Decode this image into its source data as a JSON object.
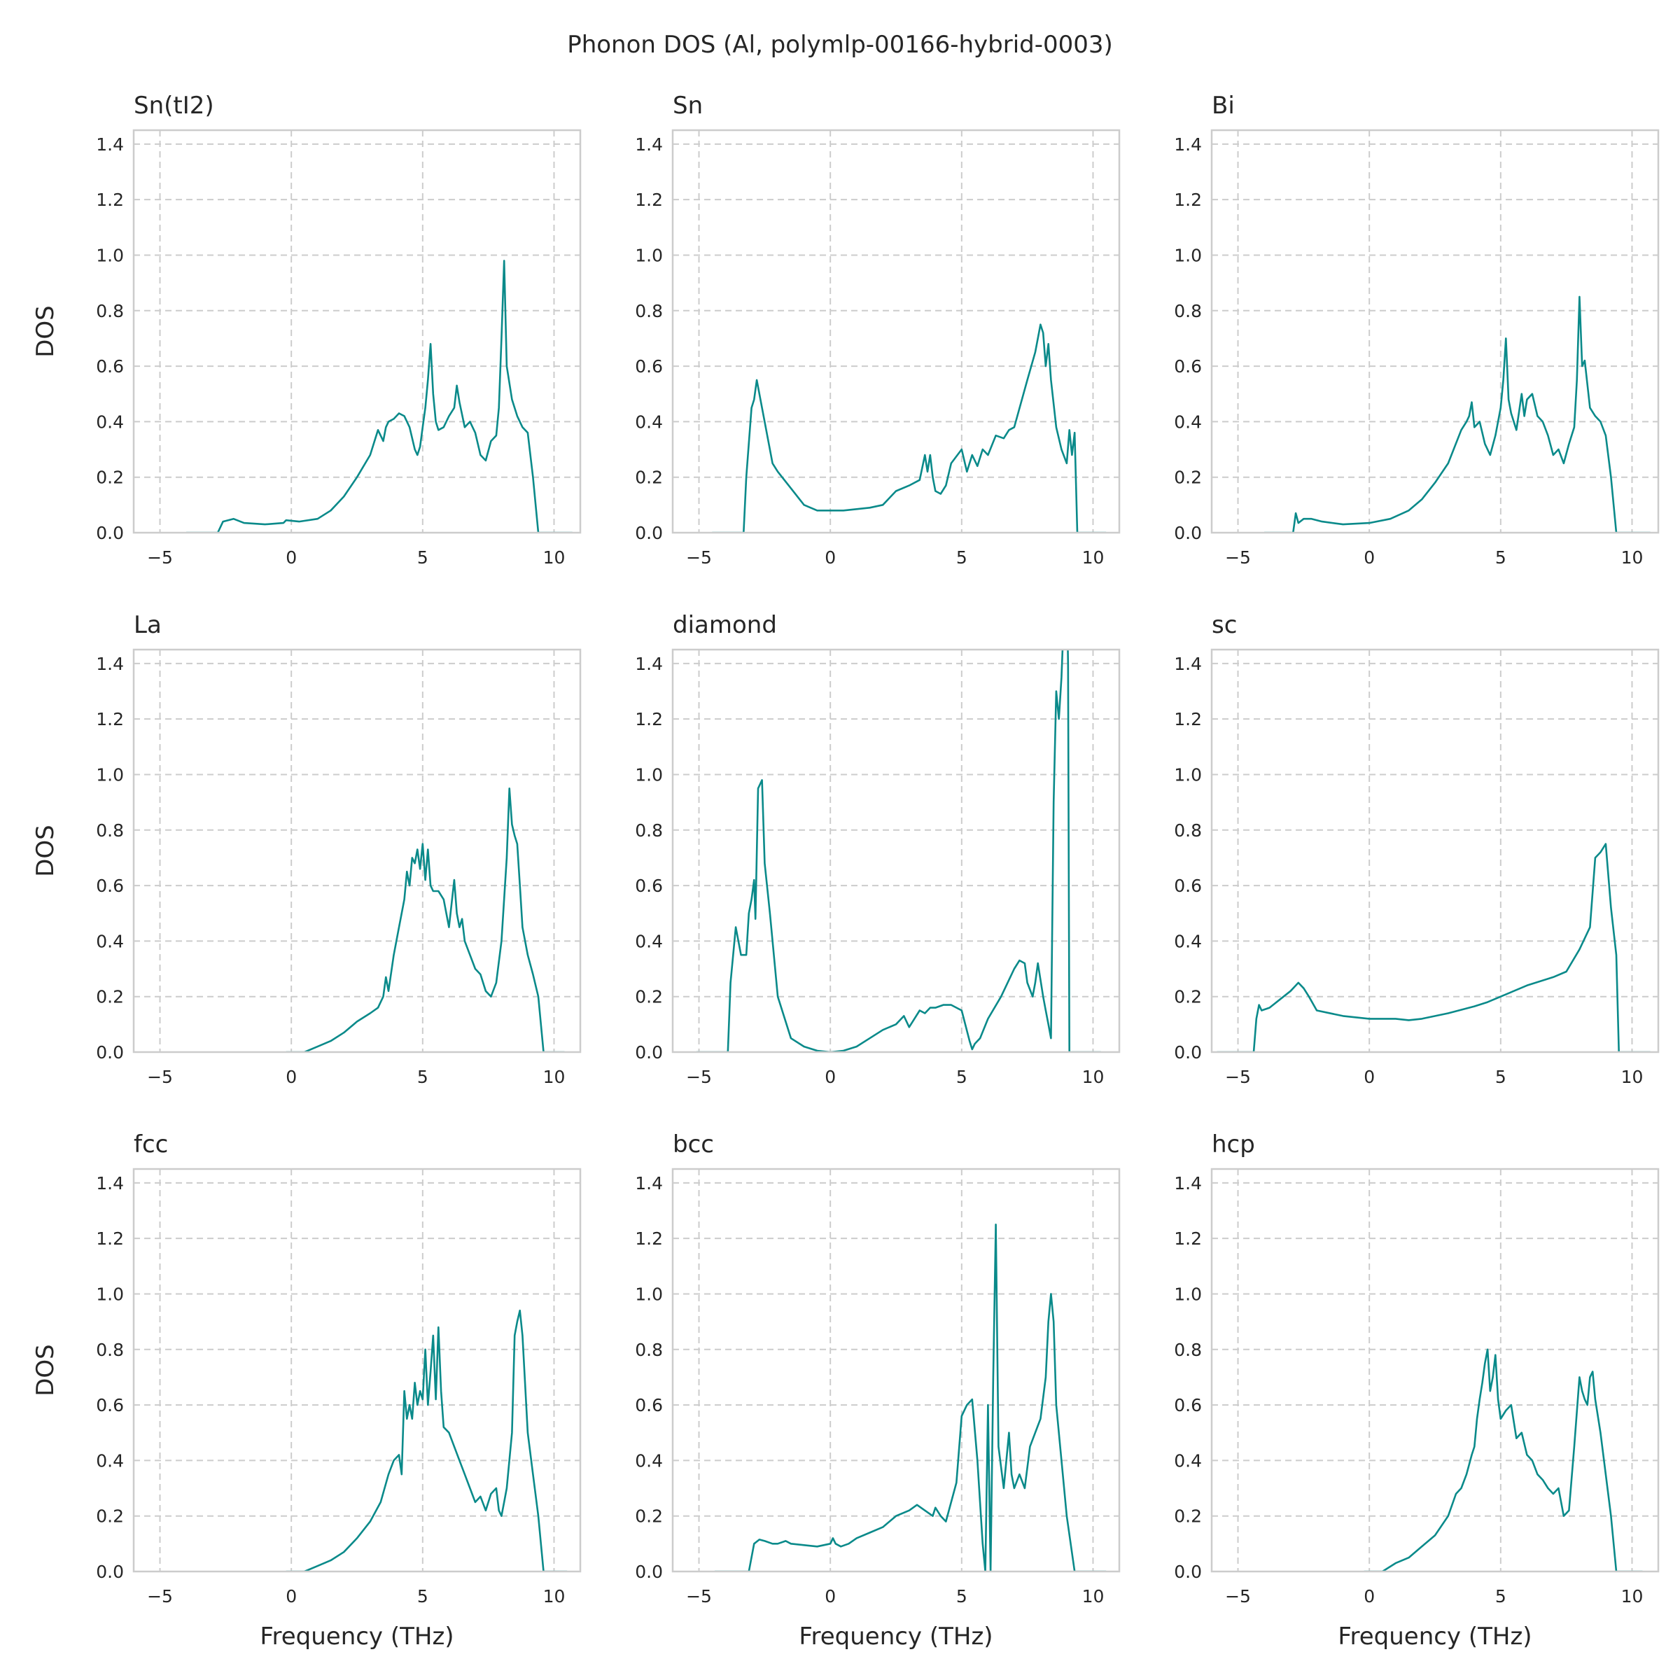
{
  "title": "Phonon DOS (Al, polymlp-00166-hybrid-0003)",
  "line_color": "#0a8a8a",
  "chart_data": [
    {
      "type": "line",
      "title": "Sn(tI2)",
      "xlabel": "",
      "ylabel": "DOS",
      "xlim": [
        -6,
        11
      ],
      "ylim": [
        0,
        1.45
      ],
      "xticks": [
        -5,
        0,
        5,
        10
      ],
      "yticks": [
        0.0,
        0.2,
        0.4,
        0.6,
        0.8,
        1.0,
        1.2,
        1.4
      ],
      "grid": true,
      "x": [
        -4.0,
        -2.8,
        -2.6,
        -2.2,
        -1.8,
        -1.0,
        -0.3,
        -0.2,
        0.3,
        1.0,
        1.5,
        2.0,
        2.5,
        3.0,
        3.3,
        3.5,
        3.6,
        3.7,
        3.9,
        4.1,
        4.3,
        4.5,
        4.7,
        4.8,
        4.9,
        5.0,
        5.1,
        5.2,
        5.3,
        5.4,
        5.5,
        5.6,
        5.8,
        6.0,
        6.2,
        6.3,
        6.4,
        6.6,
        6.8,
        7.0,
        7.2,
        7.4,
        7.6,
        7.8,
        7.9,
        8.0,
        8.1,
        8.2,
        8.4,
        8.6,
        8.8,
        9.0,
        9.2,
        9.4,
        9.6,
        10.0,
        10.7
      ],
      "values": [
        0.0,
        0.0,
        0.04,
        0.05,
        0.035,
        0.03,
        0.035,
        0.045,
        0.04,
        0.05,
        0.08,
        0.13,
        0.2,
        0.28,
        0.37,
        0.33,
        0.38,
        0.4,
        0.41,
        0.43,
        0.42,
        0.38,
        0.3,
        0.28,
        0.31,
        0.38,
        0.45,
        0.55,
        0.68,
        0.5,
        0.4,
        0.37,
        0.38,
        0.42,
        0.45,
        0.53,
        0.47,
        0.38,
        0.4,
        0.36,
        0.28,
        0.26,
        0.33,
        0.35,
        0.45,
        0.7,
        0.98,
        0.6,
        0.48,
        0.42,
        0.38,
        0.36,
        0.2,
        0.0,
        0.0,
        0.0,
        0.0
      ]
    },
    {
      "type": "line",
      "title": "Sn",
      "xlabel": "",
      "ylabel": "",
      "xlim": [
        -6,
        11
      ],
      "ylim": [
        0,
        1.45
      ],
      "xticks": [
        -5,
        0,
        5,
        10
      ],
      "yticks": [
        0.0,
        0.2,
        0.4,
        0.6,
        0.8,
        1.0,
        1.2,
        1.4
      ],
      "grid": true,
      "x": [
        -4.5,
        -3.3,
        -3.2,
        -3.0,
        -2.9,
        -2.8,
        -2.6,
        -2.4,
        -2.2,
        -2.0,
        -1.5,
        -1.0,
        -0.5,
        0.0,
        0.5,
        1.0,
        1.5,
        2.0,
        2.5,
        3.0,
        3.4,
        3.6,
        3.7,
        3.8,
        3.9,
        4.0,
        4.2,
        4.4,
        4.6,
        5.0,
        5.2,
        5.4,
        5.6,
        5.8,
        6.0,
        6.3,
        6.6,
        6.8,
        7.0,
        7.5,
        7.8,
        8.0,
        8.1,
        8.2,
        8.3,
        8.4,
        8.6,
        8.8,
        9.0,
        9.1,
        9.2,
        9.3,
        9.4,
        10.5
      ],
      "values": [
        0.0,
        0.0,
        0.2,
        0.45,
        0.48,
        0.55,
        0.45,
        0.35,
        0.25,
        0.22,
        0.16,
        0.1,
        0.08,
        0.08,
        0.08,
        0.085,
        0.09,
        0.1,
        0.15,
        0.17,
        0.19,
        0.28,
        0.22,
        0.28,
        0.2,
        0.15,
        0.14,
        0.17,
        0.25,
        0.3,
        0.22,
        0.28,
        0.24,
        0.3,
        0.28,
        0.35,
        0.34,
        0.37,
        0.38,
        0.55,
        0.65,
        0.75,
        0.72,
        0.6,
        0.68,
        0.55,
        0.38,
        0.3,
        0.25,
        0.37,
        0.28,
        0.36,
        0.0,
        0.0
      ]
    },
    {
      "type": "line",
      "title": "Bi",
      "xlabel": "",
      "ylabel": "",
      "xlim": [
        -6,
        11
      ],
      "ylim": [
        0,
        1.45
      ],
      "xticks": [
        -5,
        0,
        5,
        10
      ],
      "yticks": [
        0.0,
        0.2,
        0.4,
        0.6,
        0.8,
        1.0,
        1.2,
        1.4
      ],
      "grid": true,
      "x": [
        -4.0,
        -2.9,
        -2.8,
        -2.7,
        -2.5,
        -2.2,
        -1.8,
        -1.0,
        0.0,
        0.8,
        1.5,
        2.0,
        2.5,
        3.0,
        3.5,
        3.7,
        3.8,
        3.9,
        4.0,
        4.2,
        4.4,
        4.6,
        4.8,
        5.0,
        5.1,
        5.2,
        5.3,
        5.4,
        5.6,
        5.8,
        5.9,
        6.0,
        6.2,
        6.4,
        6.6,
        6.8,
        7.0,
        7.2,
        7.4,
        7.6,
        7.8,
        7.9,
        8.0,
        8.1,
        8.2,
        8.4,
        8.6,
        8.8,
        9.0,
        9.2,
        9.4,
        9.6,
        10.7
      ],
      "values": [
        0.0,
        0.0,
        0.07,
        0.035,
        0.05,
        0.05,
        0.04,
        0.03,
        0.035,
        0.05,
        0.08,
        0.12,
        0.18,
        0.25,
        0.37,
        0.4,
        0.42,
        0.47,
        0.38,
        0.4,
        0.32,
        0.28,
        0.35,
        0.45,
        0.55,
        0.7,
        0.48,
        0.43,
        0.37,
        0.5,
        0.42,
        0.48,
        0.5,
        0.42,
        0.4,
        0.35,
        0.28,
        0.3,
        0.25,
        0.32,
        0.38,
        0.55,
        0.85,
        0.6,
        0.62,
        0.45,
        0.42,
        0.4,
        0.35,
        0.2,
        0.0,
        0.0,
        0.0
      ]
    },
    {
      "type": "line",
      "title": "La",
      "xlabel": "",
      "ylabel": "DOS",
      "xlim": [
        -6,
        11
      ],
      "ylim": [
        0,
        1.45
      ],
      "xticks": [
        -5,
        0,
        5,
        10
      ],
      "yticks": [
        0.0,
        0.2,
        0.4,
        0.6,
        0.8,
        1.0,
        1.2,
        1.4
      ],
      "grid": true,
      "x": [
        -0.2,
        0.5,
        1.0,
        1.5,
        2.0,
        2.5,
        3.0,
        3.3,
        3.5,
        3.6,
        3.7,
        3.9,
        4.1,
        4.3,
        4.4,
        4.5,
        4.6,
        4.7,
        4.8,
        4.9,
        5.0,
        5.1,
        5.2,
        5.3,
        5.4,
        5.6,
        5.8,
        6.0,
        6.2,
        6.3,
        6.4,
        6.5,
        6.6,
        6.8,
        7.0,
        7.2,
        7.4,
        7.6,
        7.8,
        8.0,
        8.2,
        8.3,
        8.4,
        8.5,
        8.6,
        8.7,
        8.8,
        9.0,
        9.2,
        9.4,
        9.6,
        10.4
      ],
      "values": [
        0.0,
        0.0,
        0.02,
        0.04,
        0.07,
        0.11,
        0.14,
        0.16,
        0.2,
        0.27,
        0.22,
        0.35,
        0.45,
        0.55,
        0.65,
        0.6,
        0.7,
        0.68,
        0.73,
        0.66,
        0.75,
        0.62,
        0.73,
        0.6,
        0.58,
        0.58,
        0.55,
        0.45,
        0.62,
        0.5,
        0.45,
        0.48,
        0.4,
        0.35,
        0.3,
        0.28,
        0.22,
        0.2,
        0.25,
        0.4,
        0.7,
        0.95,
        0.82,
        0.78,
        0.75,
        0.6,
        0.45,
        0.35,
        0.28,
        0.2,
        0.0,
        0.0
      ]
    },
    {
      "type": "line",
      "title": "diamond",
      "xlabel": "",
      "ylabel": "",
      "xlim": [
        -6,
        11
      ],
      "ylim": [
        0,
        1.45
      ],
      "xticks": [
        -5,
        0,
        5,
        10
      ],
      "yticks": [
        0.0,
        0.2,
        0.4,
        0.6,
        0.8,
        1.0,
        1.2,
        1.4
      ],
      "grid": true,
      "x": [
        -5.1,
        -3.9,
        -3.8,
        -3.6,
        -3.4,
        -3.2,
        -3.1,
        -3.0,
        -2.9,
        -2.85,
        -2.75,
        -2.6,
        -2.5,
        -2.3,
        -2.0,
        -1.5,
        -1.0,
        -0.5,
        0.0,
        0.5,
        1.0,
        1.5,
        2.0,
        2.5,
        2.8,
        3.0,
        3.2,
        3.4,
        3.6,
        3.8,
        4.0,
        4.3,
        4.6,
        5.0,
        5.3,
        5.4,
        5.5,
        5.7,
        6.0,
        6.5,
        7.0,
        7.2,
        7.4,
        7.5,
        7.7,
        7.8,
        7.9,
        8.1,
        8.2,
        8.3,
        8.4,
        8.5,
        8.6,
        8.7,
        8.8,
        8.9,
        9.0,
        9.05,
        9.1,
        9.15,
        10.3
      ],
      "values": [
        0.0,
        0.0,
        0.25,
        0.45,
        0.35,
        0.35,
        0.5,
        0.55,
        0.62,
        0.48,
        0.95,
        0.98,
        0.68,
        0.5,
        0.2,
        0.05,
        0.02,
        0.005,
        0.0,
        0.005,
        0.02,
        0.05,
        0.08,
        0.1,
        0.13,
        0.09,
        0.12,
        0.15,
        0.14,
        0.16,
        0.16,
        0.17,
        0.17,
        0.15,
        0.04,
        0.01,
        0.03,
        0.05,
        0.12,
        0.2,
        0.3,
        0.33,
        0.32,
        0.25,
        0.2,
        0.25,
        0.32,
        0.2,
        0.15,
        0.1,
        0.05,
        0.9,
        1.3,
        1.2,
        1.35,
        1.6,
        1.7,
        1.4,
        0.0,
        0.0,
        0.0
      ]
    },
    {
      "type": "line",
      "title": "sc",
      "xlabel": "",
      "ylabel": "",
      "xlim": [
        -6,
        11
      ],
      "ylim": [
        0,
        1.45
      ],
      "xticks": [
        -5,
        0,
        5,
        10
      ],
      "yticks": [
        0.0,
        0.2,
        0.4,
        0.6,
        0.8,
        1.0,
        1.2,
        1.4
      ],
      "grid": true,
      "x": [
        -5.8,
        -4.4,
        -4.3,
        -4.2,
        -4.1,
        -3.8,
        -3.4,
        -3.0,
        -2.7,
        -2.5,
        -2.3,
        -2.0,
        -1.0,
        0.0,
        1.0,
        1.5,
        2.0,
        3.0,
        4.0,
        4.5,
        5.0,
        6.0,
        7.0,
        7.5,
        8.0,
        8.4,
        8.6,
        8.8,
        9.0,
        9.2,
        9.4,
        9.5,
        10.7
      ],
      "values": [
        0.0,
        0.0,
        0.12,
        0.17,
        0.15,
        0.16,
        0.19,
        0.22,
        0.25,
        0.23,
        0.2,
        0.15,
        0.13,
        0.12,
        0.12,
        0.115,
        0.12,
        0.14,
        0.165,
        0.18,
        0.2,
        0.24,
        0.27,
        0.29,
        0.37,
        0.45,
        0.7,
        0.72,
        0.75,
        0.52,
        0.35,
        0.0,
        0.0
      ]
    },
    {
      "type": "line",
      "title": "fcc",
      "xlabel": "Frequency (THz)",
      "ylabel": "DOS",
      "xlim": [
        -6,
        11
      ],
      "ylim": [
        0,
        1.45
      ],
      "xticks": [
        -5,
        0,
        5,
        10
      ],
      "yticks": [
        0.0,
        0.2,
        0.4,
        0.6,
        0.8,
        1.0,
        1.2,
        1.4
      ],
      "grid": true,
      "x": [
        -0.2,
        0.5,
        1.0,
        1.5,
        2.0,
        2.5,
        3.0,
        3.4,
        3.7,
        3.9,
        4.1,
        4.2,
        4.3,
        4.4,
        4.5,
        4.6,
        4.7,
        4.8,
        4.9,
        5.0,
        5.1,
        5.2,
        5.3,
        5.4,
        5.5,
        5.6,
        5.7,
        5.8,
        6.0,
        6.2,
        6.4,
        6.6,
        6.8,
        7.0,
        7.2,
        7.4,
        7.6,
        7.8,
        7.9,
        8.0,
        8.1,
        8.2,
        8.4,
        8.5,
        8.6,
        8.7,
        8.8,
        9.0,
        9.2,
        9.4,
        9.6,
        10.5
      ],
      "values": [
        0.0,
        0.0,
        0.02,
        0.04,
        0.07,
        0.12,
        0.18,
        0.25,
        0.35,
        0.4,
        0.42,
        0.35,
        0.65,
        0.55,
        0.6,
        0.55,
        0.68,
        0.6,
        0.65,
        0.62,
        0.8,
        0.6,
        0.72,
        0.85,
        0.62,
        0.88,
        0.65,
        0.52,
        0.5,
        0.45,
        0.4,
        0.35,
        0.3,
        0.25,
        0.27,
        0.22,
        0.28,
        0.3,
        0.22,
        0.2,
        0.25,
        0.3,
        0.5,
        0.85,
        0.9,
        0.94,
        0.85,
        0.5,
        0.35,
        0.2,
        0.0,
        0.0
      ]
    },
    {
      "type": "line",
      "title": "bcc",
      "xlabel": "Frequency (THz)",
      "ylabel": "",
      "xlim": [
        -6,
        11
      ],
      "ylim": [
        0,
        1.45
      ],
      "xticks": [
        -5,
        0,
        5,
        10
      ],
      "yticks": [
        0.0,
        0.2,
        0.4,
        0.6,
        0.8,
        1.0,
        1.2,
        1.4
      ],
      "grid": true,
      "x": [
        -4.4,
        -3.1,
        -2.9,
        -2.7,
        -2.5,
        -2.2,
        -2.0,
        -1.7,
        -1.5,
        -1.0,
        -0.5,
        0.0,
        0.1,
        0.2,
        0.4,
        0.7,
        1.0,
        1.5,
        2.0,
        2.5,
        3.0,
        3.3,
        3.6,
        3.9,
        4.0,
        4.2,
        4.4,
        4.6,
        4.8,
        5.0,
        5.2,
        5.4,
        5.6,
        5.8,
        5.9,
        6.0,
        6.1,
        6.2,
        6.3,
        6.4,
        6.6,
        6.8,
        6.9,
        7.0,
        7.2,
        7.4,
        7.6,
        7.8,
        8.0,
        8.2,
        8.3,
        8.4,
        8.5,
        8.6,
        8.8,
        9.0,
        9.3,
        10.5
      ],
      "values": [
        0.0,
        0.0,
        0.1,
        0.115,
        0.11,
        0.1,
        0.1,
        0.11,
        0.1,
        0.095,
        0.09,
        0.1,
        0.12,
        0.1,
        0.09,
        0.1,
        0.12,
        0.14,
        0.16,
        0.2,
        0.22,
        0.24,
        0.22,
        0.2,
        0.23,
        0.2,
        0.18,
        0.25,
        0.32,
        0.56,
        0.6,
        0.62,
        0.4,
        0.1,
        0.0,
        0.6,
        0.0,
        0.7,
        1.25,
        0.45,
        0.3,
        0.5,
        0.35,
        0.3,
        0.35,
        0.3,
        0.45,
        0.5,
        0.55,
        0.7,
        0.9,
        1.0,
        0.9,
        0.6,
        0.4,
        0.2,
        0.0,
        0.0
      ]
    },
    {
      "type": "line",
      "title": "hcp",
      "xlabel": "Frequency (THz)",
      "ylabel": "",
      "xlim": [
        -6,
        11
      ],
      "ylim": [
        0,
        1.45
      ],
      "xticks": [
        -5,
        0,
        5,
        10
      ],
      "yticks": [
        0.0,
        0.2,
        0.4,
        0.6,
        0.8,
        1.0,
        1.2,
        1.4
      ],
      "grid": true,
      "x": [
        -0.2,
        0.5,
        1.0,
        1.5,
        2.0,
        2.5,
        3.0,
        3.3,
        3.5,
        3.7,
        3.9,
        4.0,
        4.1,
        4.2,
        4.3,
        4.4,
        4.5,
        4.6,
        4.7,
        4.8,
        4.9,
        5.0,
        5.2,
        5.4,
        5.6,
        5.8,
        6.0,
        6.2,
        6.4,
        6.6,
        6.8,
        7.0,
        7.2,
        7.4,
        7.6,
        7.8,
        8.0,
        8.1,
        8.2,
        8.3,
        8.4,
        8.5,
        8.6,
        8.8,
        9.0,
        9.2,
        9.4,
        10.4
      ],
      "values": [
        0.0,
        0.0,
        0.03,
        0.05,
        0.09,
        0.13,
        0.2,
        0.28,
        0.3,
        0.35,
        0.42,
        0.45,
        0.55,
        0.62,
        0.68,
        0.75,
        0.8,
        0.65,
        0.7,
        0.78,
        0.62,
        0.55,
        0.58,
        0.6,
        0.48,
        0.5,
        0.42,
        0.4,
        0.35,
        0.33,
        0.3,
        0.28,
        0.3,
        0.2,
        0.22,
        0.45,
        0.7,
        0.65,
        0.62,
        0.6,
        0.7,
        0.72,
        0.62,
        0.5,
        0.35,
        0.2,
        0.0,
        0.0
      ]
    }
  ]
}
